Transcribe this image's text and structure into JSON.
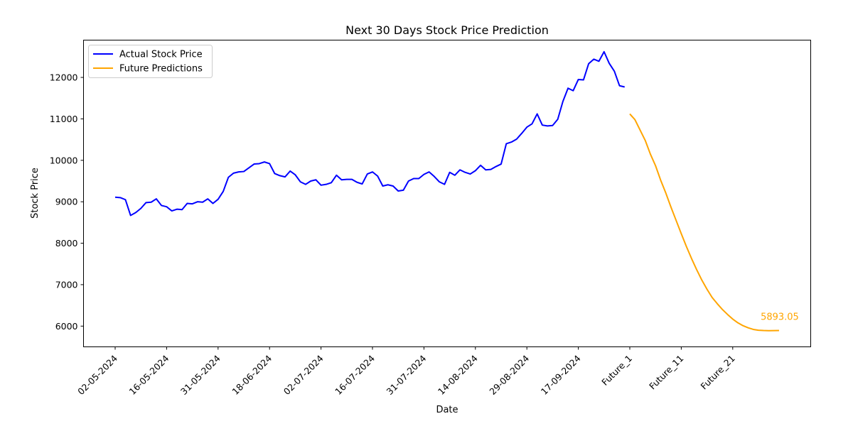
{
  "chart_data": {
    "type": "line",
    "title": "Next 30 Days Stock Price Prediction",
    "xlabel": "Date",
    "ylabel": "Stock Price",
    "ylim": [
      5500,
      12900
    ],
    "grid": false,
    "legend_position": "top-left",
    "x_tick_labels": [
      "02-05-2024",
      "16-05-2024",
      "31-05-2024",
      "18-06-2024",
      "02-07-2024",
      "16-07-2024",
      "31-07-2024",
      "14-08-2024",
      "29-08-2024",
      "17-09-2024",
      "Future_1",
      "Future_11",
      "Future_21"
    ],
    "x_tick_index": [
      0,
      10,
      20,
      30,
      40,
      50,
      60,
      70,
      80,
      90,
      100,
      110,
      120
    ],
    "y_ticks": [
      6000,
      7000,
      8000,
      9000,
      10000,
      11000,
      12000
    ],
    "series": [
      {
        "name": "Actual Stock Price",
        "color": "#0000ff",
        "x": [
          0,
          1,
          2,
          3,
          4,
          5,
          6,
          7,
          8,
          9,
          10,
          11,
          12,
          13,
          14,
          15,
          16,
          17,
          18,
          19,
          20,
          21,
          22,
          23,
          24,
          25,
          26,
          27,
          28,
          29,
          30,
          31,
          32,
          33,
          34,
          35,
          36,
          37,
          38,
          39,
          40,
          41,
          42,
          43,
          44,
          45,
          46,
          47,
          48,
          49,
          50,
          51,
          52,
          53,
          54,
          55,
          56,
          57,
          58,
          59,
          60,
          61,
          62,
          63,
          64,
          65,
          66,
          67,
          68,
          69,
          70,
          71,
          72,
          73,
          74,
          75,
          76,
          77,
          78,
          79,
          80,
          81,
          82,
          83,
          84,
          85,
          86,
          87,
          88,
          89,
          90,
          91,
          92,
          93,
          94,
          95,
          96,
          97,
          98,
          99
        ],
        "values": [
          9110,
          9100,
          9050,
          8670,
          8740,
          8840,
          8980,
          8990,
          9070,
          8910,
          8880,
          8780,
          8820,
          8810,
          8960,
          8950,
          9000,
          8990,
          9070,
          8960,
          9060,
          9250,
          9590,
          9690,
          9720,
          9730,
          9820,
          9910,
          9920,
          9960,
          9920,
          9680,
          9630,
          9600,
          9740,
          9650,
          9480,
          9420,
          9500,
          9530,
          9400,
          9420,
          9460,
          9640,
          9530,
          9540,
          9540,
          9470,
          9430,
          9670,
          9720,
          9620,
          9380,
          9410,
          9380,
          9260,
          9280,
          9500,
          9560,
          9560,
          9660,
          9720,
          9610,
          9480,
          9420,
          9710,
          9640,
          9770,
          9710,
          9670,
          9750,
          9880,
          9770,
          9780,
          9850,
          9910,
          10400,
          10440,
          10510,
          10650,
          10800,
          10880,
          11120,
          10850,
          10830,
          10840,
          10990,
          11420,
          11740,
          11680,
          11950,
          11940,
          12330,
          12440,
          12390,
          12620,
          12340,
          12150,
          11800,
          11770
        ]
      },
      {
        "name": "Future Predictions",
        "color": "#ffa500",
        "x": [
          100,
          101,
          102,
          103,
          104,
          105,
          106,
          107,
          108,
          109,
          110,
          111,
          112,
          113,
          114,
          115,
          116,
          117,
          118,
          119,
          120,
          121,
          122,
          123,
          124,
          125,
          126,
          127,
          128,
          129
        ],
        "values": [
          11120,
          10980,
          10730,
          10480,
          10150,
          9870,
          9520,
          9210,
          8870,
          8550,
          8230,
          7920,
          7630,
          7360,
          7110,
          6890,
          6690,
          6540,
          6400,
          6280,
          6170,
          6080,
          6010,
          5960,
          5920,
          5900,
          5893,
          5890,
          5892,
          5893.05
        ]
      }
    ],
    "annotations": [
      {
        "text": "5893.05",
        "x": 129,
        "y": 5893.05,
        "color": "#ffa500"
      }
    ]
  }
}
